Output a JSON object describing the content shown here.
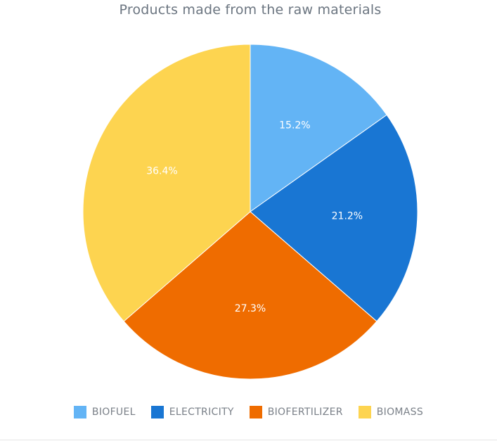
{
  "chart_data": {
    "type": "pie",
    "title": "Products made from the raw materials",
    "slices": [
      {
        "name": "BIOFUEL",
        "value": 15.2,
        "label": "15.2%",
        "color": "#63b4f5"
      },
      {
        "name": "ELECTRICITY",
        "value": 21.2,
        "label": "21.2%",
        "color": "#1976d3"
      },
      {
        "name": "BIOFERTILIZER",
        "value": 27.3,
        "label": "27.3%",
        "color": "#ef6c00"
      },
      {
        "name": "BIOMASS",
        "value": 36.4,
        "label": "36.4%",
        "color": "#fdd450"
      }
    ],
    "start_angle": "12 o'clock",
    "direction": "clockwise",
    "legend_position": "bottom-center",
    "label_color": "#ffffff"
  }
}
